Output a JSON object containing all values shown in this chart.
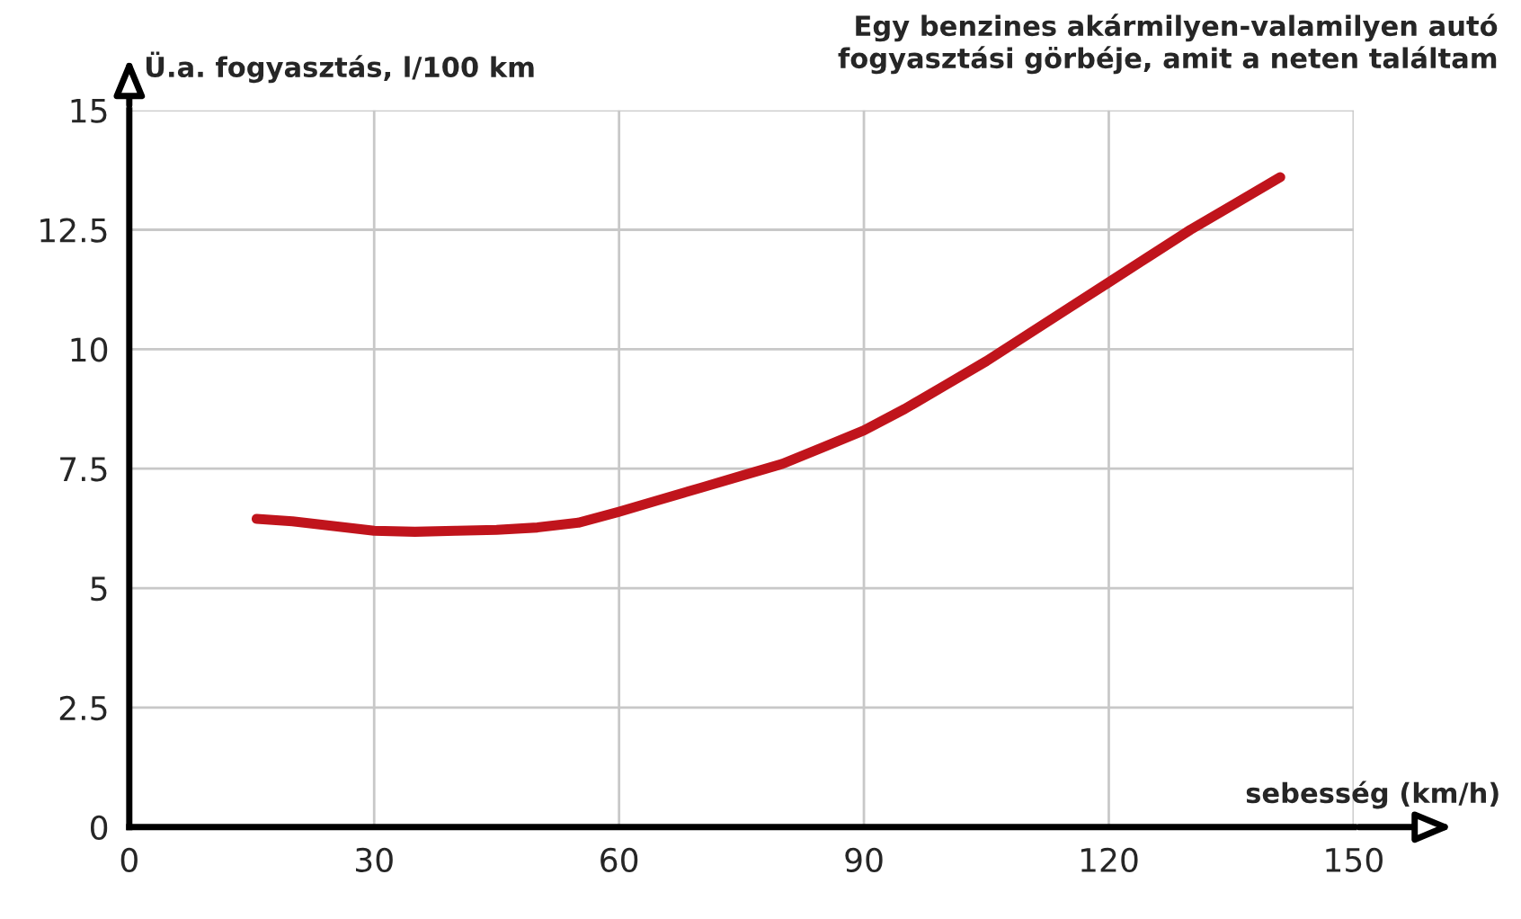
{
  "chart_data": {
    "type": "line",
    "title": "Egy benzines akármilyen-valamilyen autó\nfogyasztási görbéje, amit a neten találtam",
    "xlabel": "sebesség (km/h)",
    "ylabel": "Ü.a. fogyasztás, l/100 km",
    "x": [
      15.6,
      20,
      25,
      30,
      35,
      40,
      45,
      50,
      55,
      60,
      65,
      70,
      75,
      80,
      85,
      90,
      95,
      100,
      105,
      110,
      115,
      120,
      125,
      130,
      135,
      141
    ],
    "series": [
      {
        "color": "#c0141c",
        "values": [
          6.45,
          6.4,
          6.3,
          6.2,
          6.18,
          6.2,
          6.22,
          6.27,
          6.37,
          6.6,
          6.85,
          7.1,
          7.35,
          7.6,
          7.95,
          8.3,
          8.75,
          9.25,
          9.75,
          10.3,
          10.85,
          11.4,
          11.95,
          12.5,
          13.0,
          13.6
        ]
      }
    ],
    "xlim": [
      0,
      150
    ],
    "ylim": [
      0,
      15
    ],
    "xticks": [
      0,
      30,
      60,
      90,
      120,
      150
    ],
    "yticks": [
      0,
      2.5,
      5,
      7.5,
      10,
      12.5,
      15
    ],
    "grid": true,
    "line_style": "solid",
    "marker": "none"
  }
}
